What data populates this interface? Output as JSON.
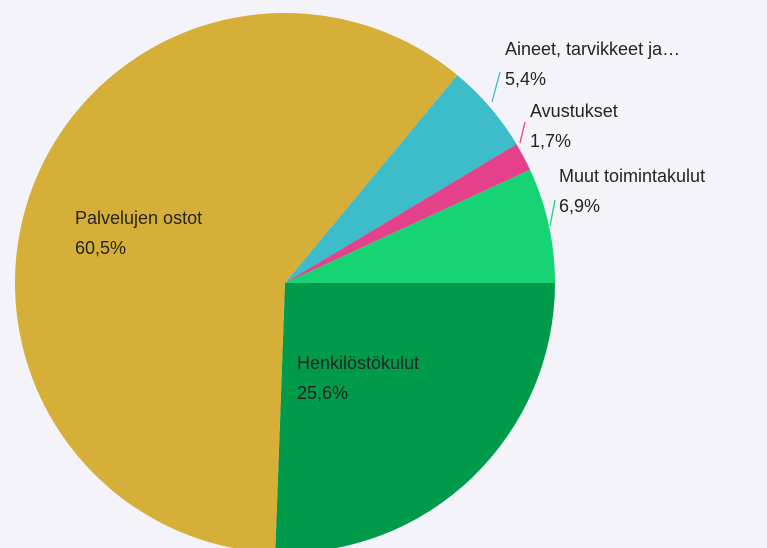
{
  "chart_data": {
    "type": "pie",
    "categories": [
      "Henkilöstökulut",
      "Palvelujen ostot",
      "Aineet, tarvikkeet ja…",
      "Avustukset",
      "Muut toimintakulut"
    ],
    "values": [
      25.6,
      60.5,
      5.4,
      1.7,
      6.9
    ],
    "value_labels": [
      "25,6%",
      "60,5%",
      "5,4%",
      "1,7%",
      "6,9%"
    ],
    "colors": [
      "#009b4a",
      "#d6af38",
      "#3dbdc9",
      "#e5408a",
      "#16d373"
    ]
  }
}
